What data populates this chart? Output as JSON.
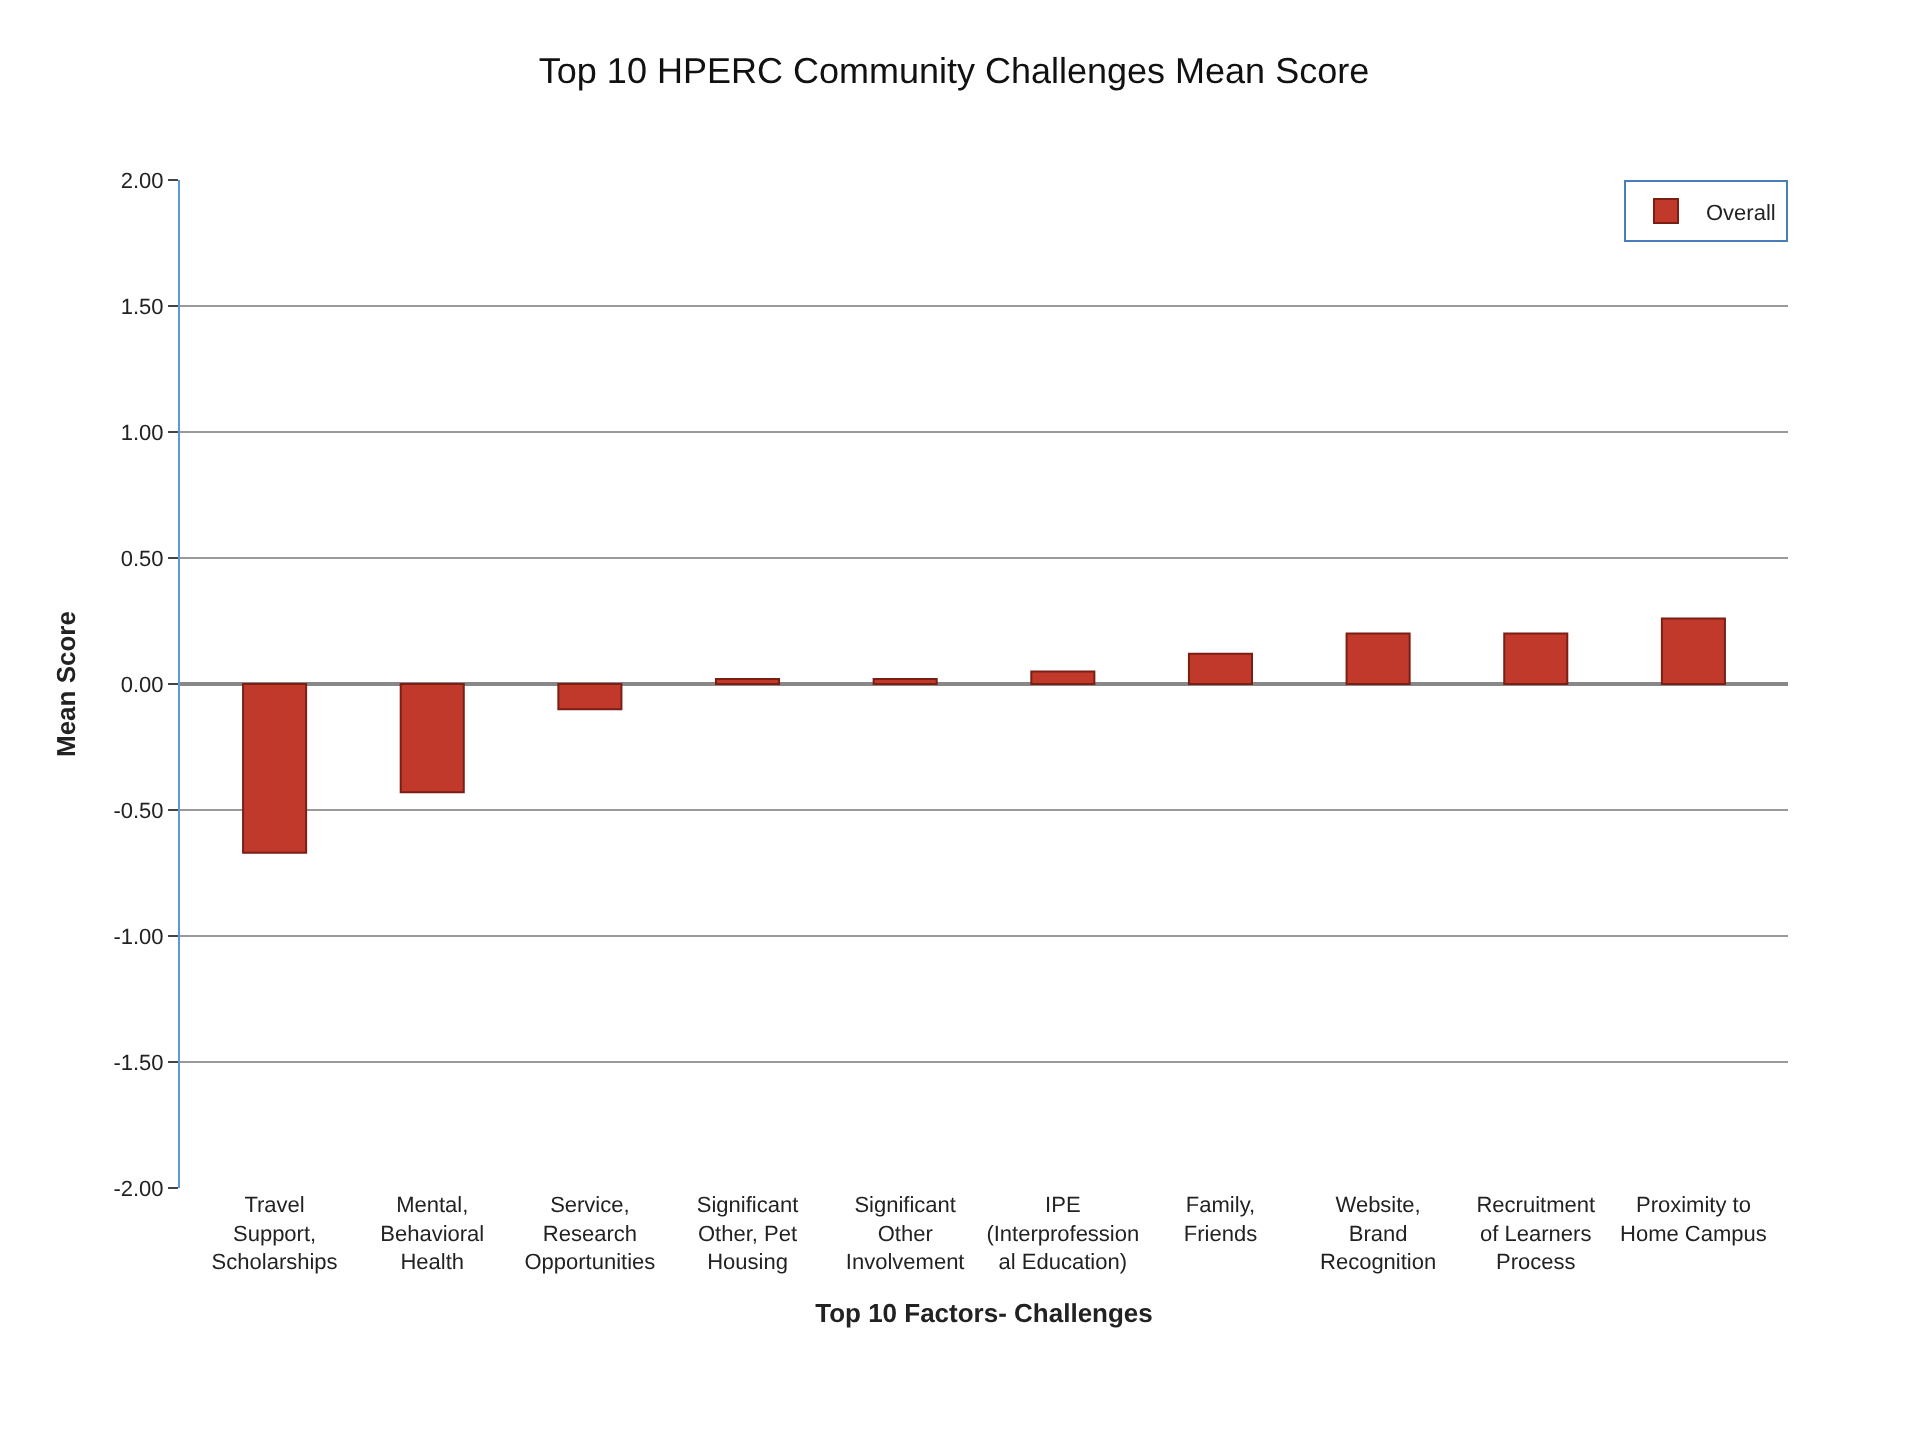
{
  "chart_data": {
    "type": "bar",
    "title": "Top 10 HPERC Community Challenges Mean Score",
    "xlabel": "Top 10 Factors- Challenges",
    "ylabel": "Mean Score",
    "categories": [
      "Travel Support, Scholarships",
      "Mental, Behavioral Health",
      "Service, Research Opportunities",
      "Significant Other, Pet Housing",
      "Significant Other Involvement",
      "IPE (Interprofession al Education)",
      "Family, Friends",
      "Website, Brand Recognition",
      "Recruitment of Learners Process",
      "Proximity to Home Campus"
    ],
    "series": [
      {
        "name": "Overall",
        "color": "#c0392b",
        "values": [
          -0.67,
          -0.43,
          -0.1,
          0.02,
          0.02,
          0.05,
          0.12,
          0.2,
          0.2,
          0.26
        ]
      }
    ],
    "ylim": [
      -2.0,
      2.0
    ],
    "yticks": [
      {
        "value": -2,
        "label": "-2.00"
      },
      {
        "value": -1.5,
        "label": "-1.50"
      },
      {
        "value": -1,
        "label": "-1.00"
      },
      {
        "value": -0.5,
        "label": "-0.50"
      },
      {
        "value": 0,
        "label": "0.00"
      },
      {
        "value": 0.5,
        "label": "0.50"
      },
      {
        "value": 1,
        "label": "1.00"
      },
      {
        "value": 1.5,
        "label": "1.50"
      },
      {
        "value": 2,
        "label": "2.00"
      }
    ],
    "grid": "y",
    "legend": "top right"
  }
}
